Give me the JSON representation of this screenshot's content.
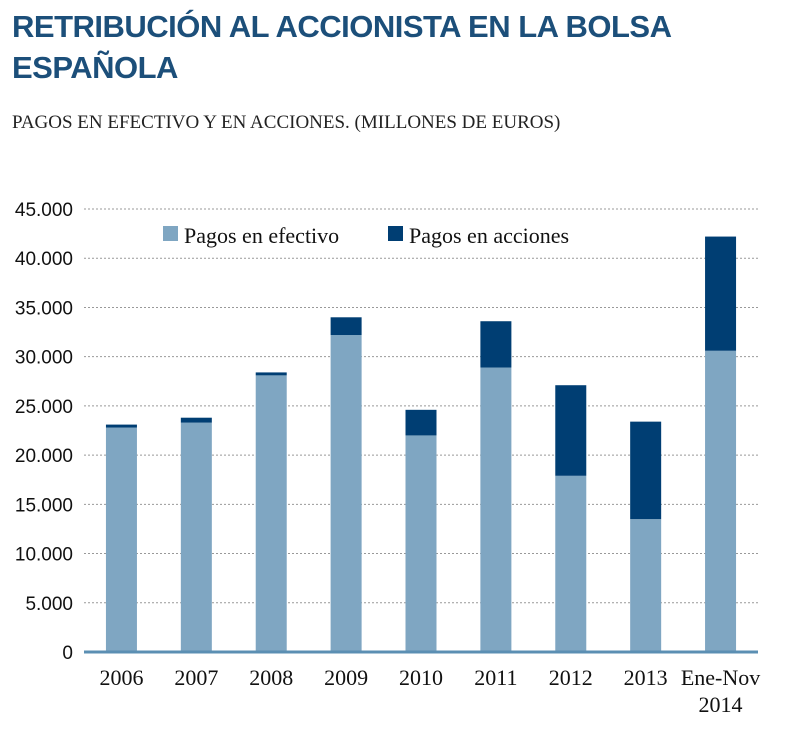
{
  "header": {
    "title": "RETRIBUCIÓN AL ACCIONISTA EN LA BOLSA ESPAÑOLA",
    "subtitle": "PAGOS EN EFECTIVO Y EN ACCIONES. (MILLONES DE EUROS)"
  },
  "colors": {
    "cash": "#7fa6c2",
    "shares": "#003e73",
    "title": "#1c4f7a",
    "grid": "#999999"
  },
  "chart_data": {
    "type": "bar",
    "stacked": true,
    "title": "RETRIBUCIÓN AL ACCIONISTA EN LA BOLSA ESPAÑOLA",
    "subtitle": "PAGOS EN EFECTIVO Y EN ACCIONES. (MILLONES DE EUROS)",
    "categories": [
      "2006",
      "2007",
      "2008",
      "2009",
      "2010",
      "2011",
      "2012",
      "2013",
      "Ene-Nov 2014"
    ],
    "category_lines": [
      [
        "2006"
      ],
      [
        "2007"
      ],
      [
        "2008"
      ],
      [
        "2009"
      ],
      [
        "2010"
      ],
      [
        "2011"
      ],
      [
        "2012"
      ],
      [
        "2013"
      ],
      [
        "Ene-Nov",
        "2014"
      ]
    ],
    "series": [
      {
        "name": "Pagos en efectivo",
        "values": [
          22800,
          23300,
          28100,
          32200,
          22000,
          28900,
          17900,
          13500,
          30600
        ]
      },
      {
        "name": "Pagos en acciones",
        "values": [
          300,
          500,
          300,
          1800,
          2600,
          4700,
          9200,
          9900,
          11600
        ]
      }
    ],
    "yticks": [
      0,
      5000,
      10000,
      15000,
      20000,
      25000,
      30000,
      35000,
      40000,
      45000
    ],
    "ytick_labels": [
      "0",
      "5.000",
      "10.000",
      "15.000",
      "20.000",
      "25.000",
      "30.000",
      "35.000",
      "40.000",
      "45.000"
    ],
    "ylim": [
      0,
      45000
    ],
    "xlabel": "",
    "ylabel": "",
    "grid": true,
    "legend_position": "top"
  }
}
